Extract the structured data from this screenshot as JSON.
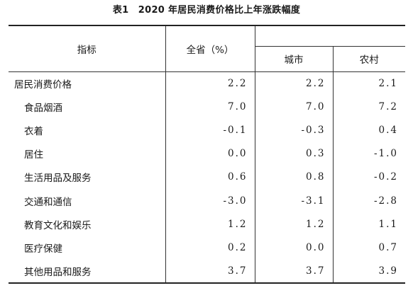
{
  "title": "表1　2020 年居民消费价格比上年涨跌幅度",
  "headers": {
    "indicator": "指标",
    "province": "全省（%）",
    "urban": "城市",
    "rural": "农村"
  },
  "rows": [
    {
      "name": "居民消费价格",
      "province": "2.2",
      "urban": "2.2",
      "rural": "2.1"
    },
    {
      "name": "食品烟酒",
      "province": "7.0",
      "urban": "7.0",
      "rural": "7.2"
    },
    {
      "name": "衣着",
      "province": "-0.1",
      "urban": "-0.3",
      "rural": "0.4"
    },
    {
      "name": "居住",
      "province": "0.0",
      "urban": "0.3",
      "rural": "-1.0"
    },
    {
      "name": "生活用品及服务",
      "province": "0.6",
      "urban": "0.8",
      "rural": "-0.2"
    },
    {
      "name": "交通和通信",
      "province": "-3.0",
      "urban": "-3.1",
      "rural": "-2.8"
    },
    {
      "name": "教育文化和娱乐",
      "province": "1.2",
      "urban": "1.2",
      "rural": "1.1"
    },
    {
      "name": "医疗保健",
      "province": "0.2",
      "urban": "0.0",
      "rural": "0.7"
    },
    {
      "name": "其他用品和服务",
      "province": "3.7",
      "urban": "3.7",
      "rural": "3.9"
    }
  ]
}
